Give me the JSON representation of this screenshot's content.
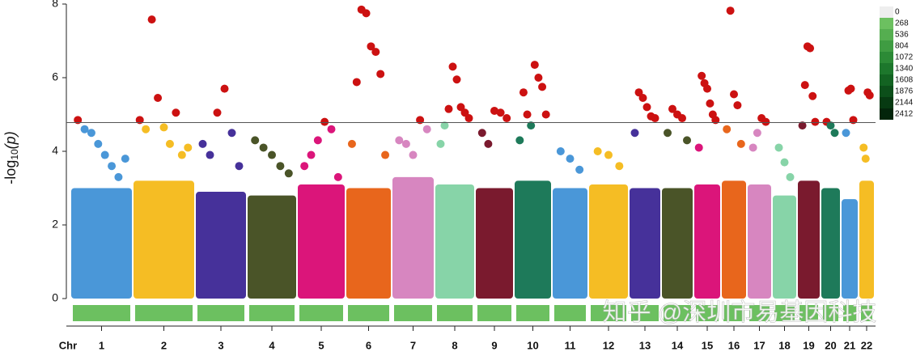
{
  "chart_data": {
    "type": "manhattan",
    "y_label": {
      "base": "-log",
      "sub": "10",
      "arg": "(p)"
    },
    "x_label": "Chr",
    "categories": [
      "1",
      "2",
      "3",
      "4",
      "5",
      "6",
      "7",
      "8",
      "9",
      "10",
      "11",
      "12",
      "13",
      "14",
      "15",
      "16",
      "17",
      "18",
      "19",
      "20",
      "21",
      "22"
    ],
    "colors": [
      "#4a97d8",
      "#f5bd24",
      "#46319a",
      "#4a5428",
      "#db157a",
      "#e8661c",
      "#d786c0",
      "#87d4a8",
      "#7a1a2e",
      "#1e7a5a",
      "#4a97d8",
      "#f5bd24",
      "#46319a",
      "#4a5428",
      "#db157a",
      "#e8661c",
      "#d786c0",
      "#87d4a8",
      "#7a1a2e",
      "#1e7a5a",
      "#4a97d8",
      "#f5bd24"
    ],
    "bulk": [
      3.0,
      3.2,
      2.9,
      2.8,
      3.1,
      3.0,
      3.3,
      3.1,
      3.0,
      3.2,
      3.0,
      3.1,
      3.0,
      3.0,
      3.1,
      3.2,
      3.1,
      2.8,
      3.2,
      3.0,
      2.7,
      3.2
    ],
    "points": [
      [
        4.85,
        4.6,
        4.5,
        4.2,
        3.9,
        3.6,
        3.3,
        3.8
      ],
      [
        4.85,
        4.6,
        7.58,
        5.45,
        4.65,
        4.2,
        5.05,
        3.9,
        4.1
      ],
      [
        4.2,
        3.9,
        5.05,
        5.7,
        4.5,
        3.6
      ],
      [
        4.3,
        4.1,
        3.9,
        3.6,
        3.4
      ],
      [
        3.6,
        3.9,
        4.3,
        4.8,
        4.6,
        3.3
      ],
      [
        4.2,
        5.88,
        7.85,
        7.75,
        6.85,
        6.7,
        6.1,
        3.9
      ],
      [
        4.3,
        4.2,
        3.9,
        4.85,
        4.6
      ],
      [
        4.2,
        4.7,
        5.15,
        6.3,
        5.95,
        5.2,
        5.05,
        4.9
      ],
      [
        4.5,
        4.2,
        5.1,
        5.05,
        4.9
      ],
      [
        4.3,
        5.6,
        5.0,
        4.7,
        6.35,
        6.0,
        5.75,
        5.0
      ],
      [
        4.0,
        3.8,
        3.5
      ],
      [
        4.0,
        3.9,
        3.6
      ],
      [
        4.5,
        5.6,
        5.45,
        5.2,
        4.95,
        4.9
      ],
      [
        4.5,
        5.15,
        5.0,
        4.9,
        4.3
      ],
      [
        4.1,
        6.05,
        5.85,
        5.7,
        5.3,
        5.0,
        4.85
      ],
      [
        4.6,
        7.82,
        5.55,
        5.25,
        4.2
      ],
      [
        4.1,
        4.5,
        4.9,
        4.8
      ],
      [
        4.1,
        3.7,
        3.3
      ],
      [
        4.7,
        5.8,
        6.85,
        6.8,
        5.5,
        4.8
      ],
      [
        4.8,
        4.7,
        4.5
      ],
      [
        4.5,
        5.65,
        5.7,
        4.85
      ],
      [
        4.1,
        3.8,
        5.6,
        5.52
      ]
    ],
    "threshold": 4.78,
    "highlight_color": "#cc1111",
    "ylim": [
      0,
      8
    ],
    "yticks": [
      0,
      2,
      4,
      6,
      8
    ],
    "density_legend": {
      "ticks": [
        0,
        268,
        536,
        804,
        1072,
        1340,
        1608,
        1876,
        2144,
        2412
      ],
      "colors": [
        "#eeeeee",
        "#6cc060",
        "#55ae50",
        "#3f9c42",
        "#2c8a36",
        "#1d772c",
        "#136322",
        "#0c4f1a",
        "#073a12",
        "#03250b"
      ]
    },
    "watermark": "知乎 @深圳市易基因科技"
  }
}
